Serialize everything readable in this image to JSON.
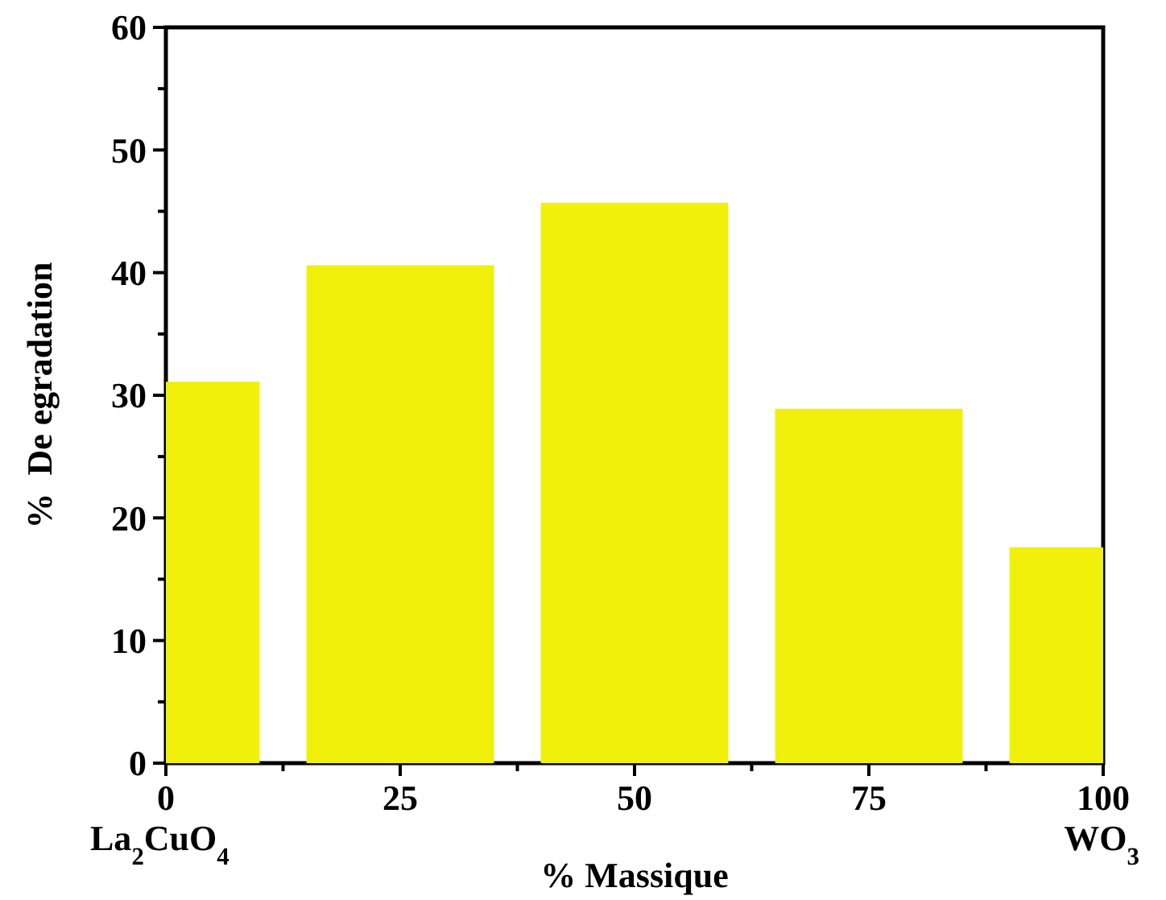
{
  "chart_data": {
    "type": "bar",
    "xlabel": "% Massique",
    "ylabel": "%  De egradation",
    "x": [
      0,
      25,
      50,
      75,
      100
    ],
    "values": [
      31.1,
      40.6,
      45.7,
      28.9,
      17.6
    ],
    "color": "#f0f00a",
    "xlim": [
      0,
      100
    ],
    "xticks": [
      0,
      {
        "value": 12.5,
        "label": null
      },
      25,
      {
        "value": 37.5,
        "label": null
      },
      50,
      {
        "value": 62.5,
        "label": null
      },
      75,
      {
        "value": 87.5,
        "label": null
      },
      100
    ],
    "ylim": [
      0,
      60
    ],
    "yticks": [
      0,
      {
        "value": 5,
        "label": null
      },
      10,
      {
        "value": 15,
        "label": null
      },
      20,
      {
        "value": 25,
        "label": null
      },
      30,
      {
        "value": 35,
        "label": null
      },
      40,
      {
        "value": 45,
        "label": null
      },
      50,
      {
        "value": 55,
        "label": null
      },
      60
    ],
    "annotations": [
      "La$_{2}$CuO$_{4}$",
      "WO$_{3}$"
    ],
    "grid": false
  }
}
